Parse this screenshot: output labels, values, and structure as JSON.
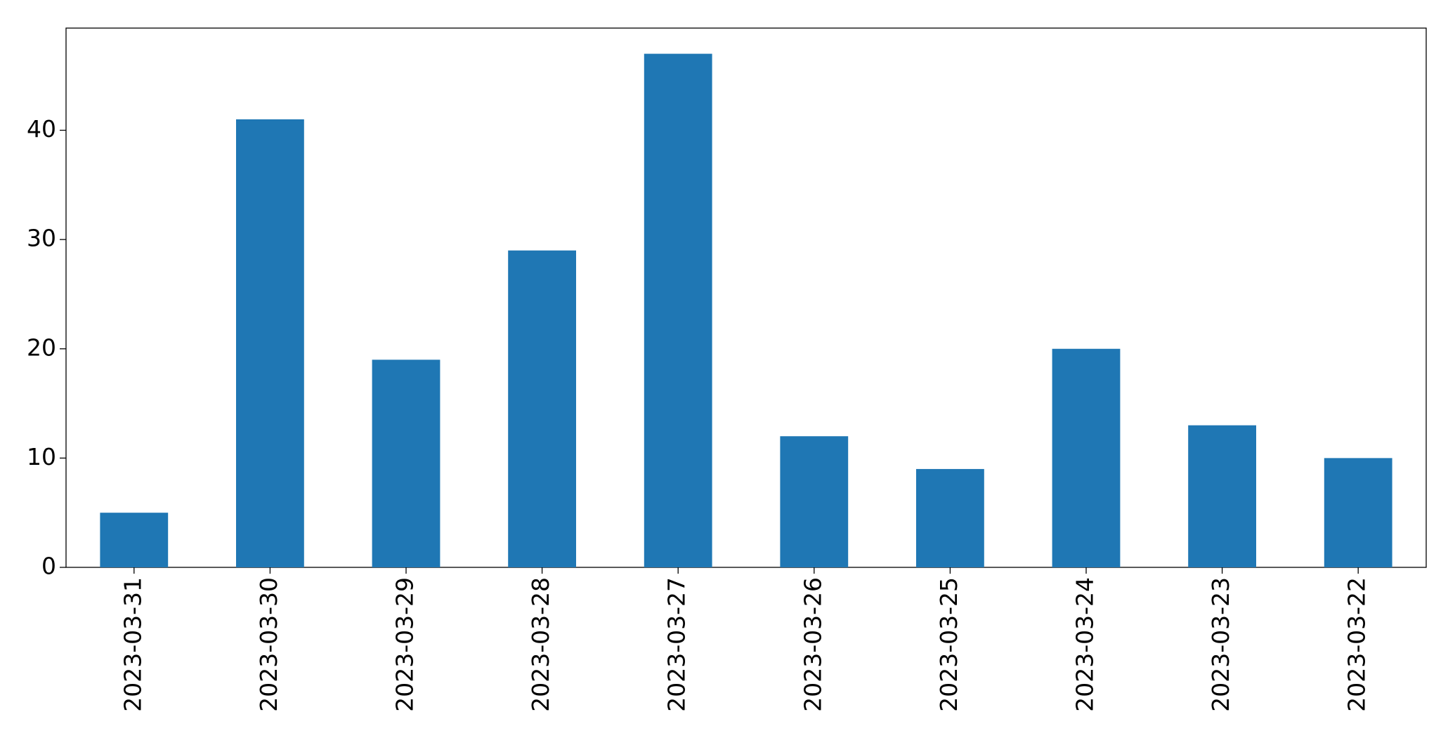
{
  "chart_data": {
    "type": "bar",
    "categories": [
      "2023-03-31",
      "2023-03-30",
      "2023-03-29",
      "2023-03-28",
      "2023-03-27",
      "2023-03-26",
      "2023-03-25",
      "2023-03-24",
      "2023-03-23",
      "2023-03-22"
    ],
    "values": [
      5,
      41,
      19,
      29,
      47,
      12,
      9,
      20,
      13,
      10
    ],
    "color": "#1f77b4",
    "ylim": [
      0,
      49.35
    ],
    "yticks": [
      0,
      10,
      20,
      30,
      40
    ],
    "grid": false
  }
}
